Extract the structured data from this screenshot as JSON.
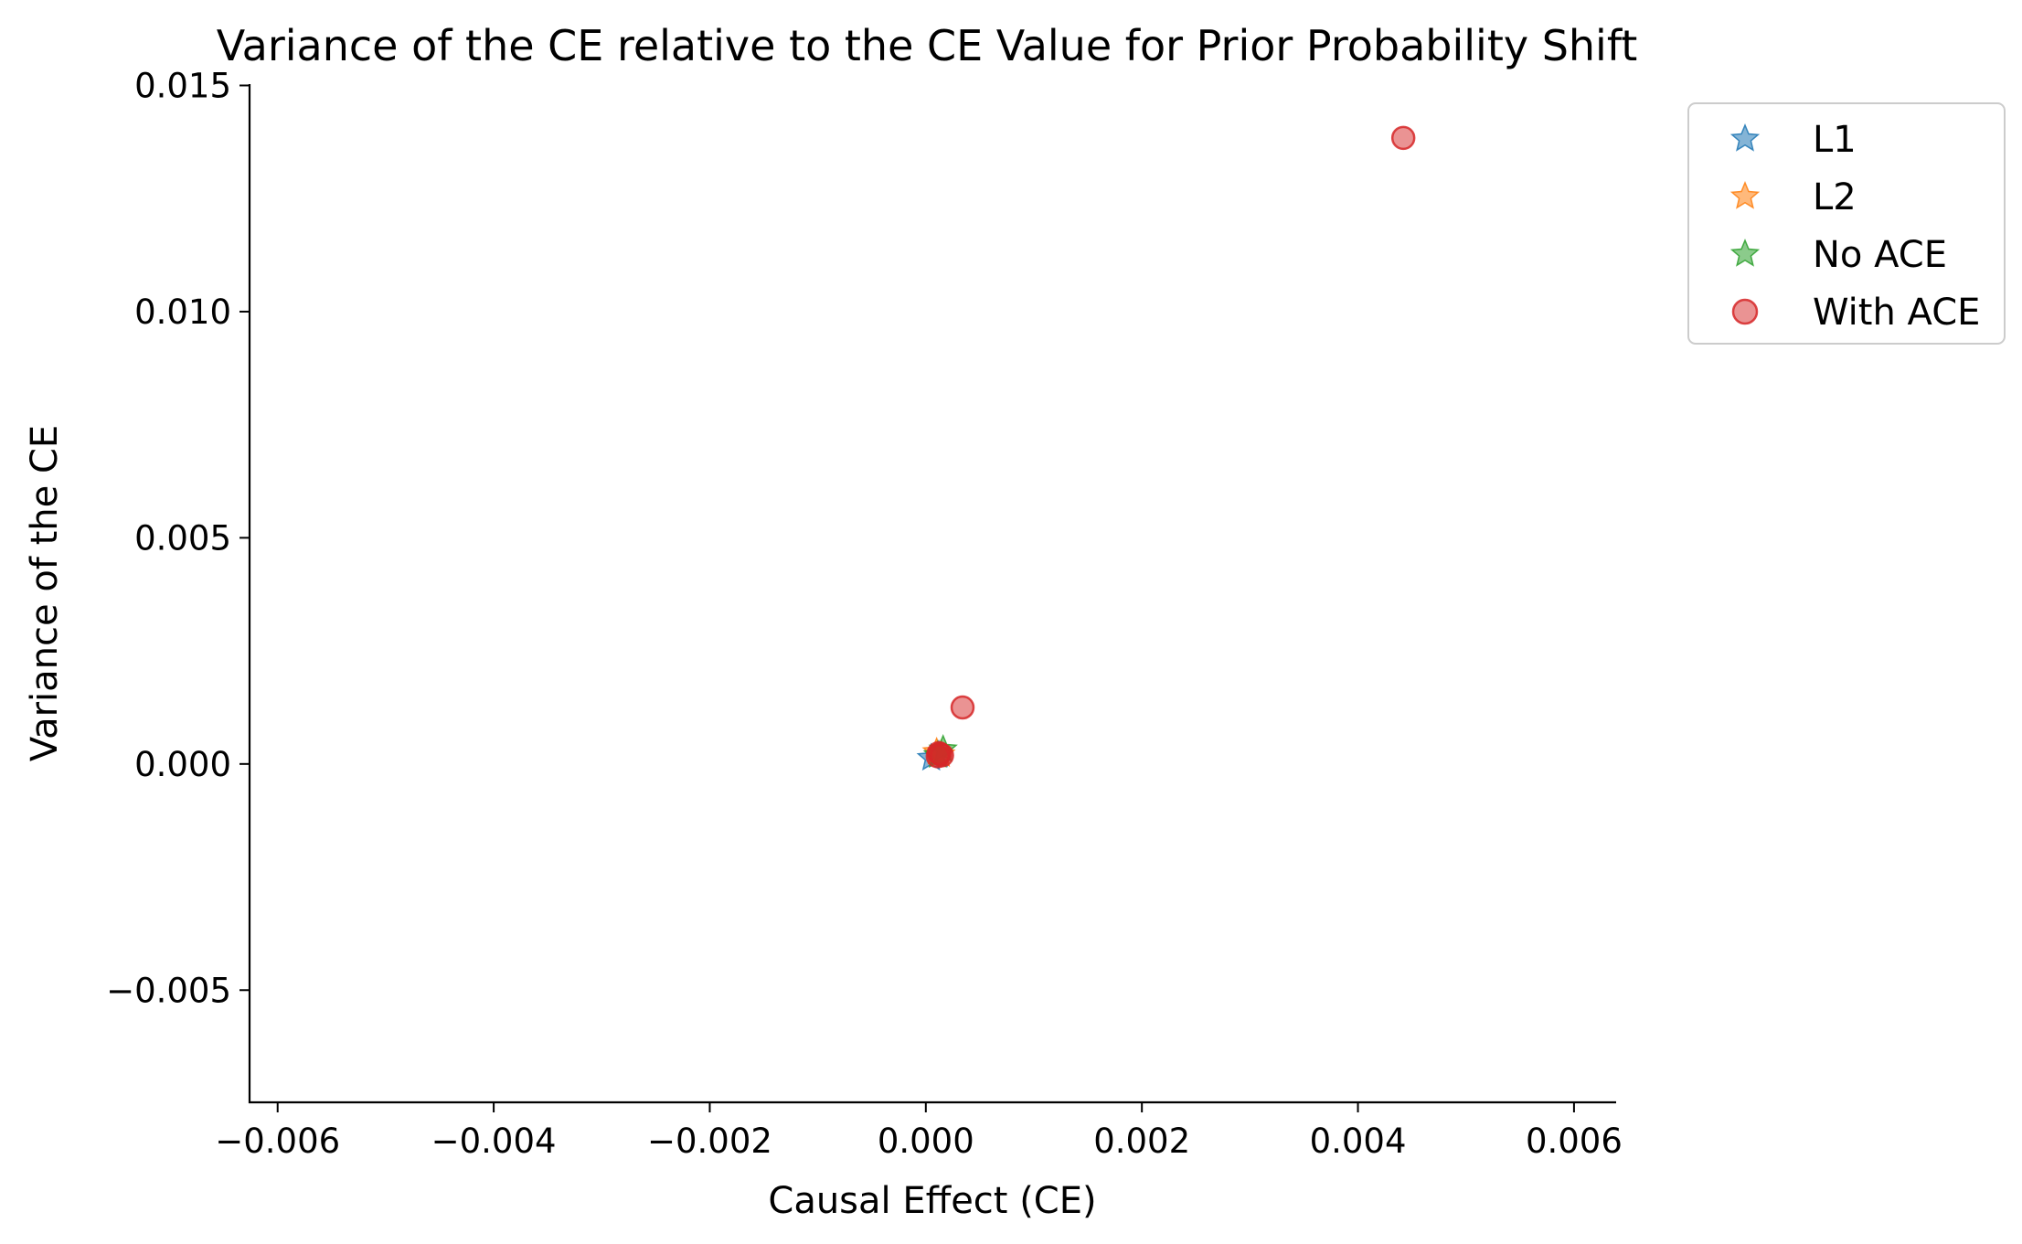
{
  "chart_data": {
    "type": "scatter",
    "title": "Variance of the CE relative to the CE Value for Prior Probability Shift",
    "xlabel": "Causal Effect (CE)",
    "ylabel": "Variance of the CE",
    "xlim": [
      -0.00626,
      0.00639
    ],
    "ylim": [
      -0.00748,
      0.01503
    ],
    "xticks": [
      -0.006,
      -0.004,
      -0.002,
      0.0,
      0.002,
      0.004,
      0.006
    ],
    "xtick_labels": [
      "−0.006",
      "−0.004",
      "−0.002",
      "0.000",
      "0.002",
      "0.004",
      "0.006"
    ],
    "yticks": [
      -0.005,
      0.0,
      0.005,
      0.01,
      0.015
    ],
    "ytick_labels": [
      "−0.005",
      "0.000",
      "0.005",
      "0.010",
      "0.015"
    ],
    "grid": false,
    "legend_position": "outside-top-right",
    "series": [
      {
        "name": "L1",
        "marker": "star",
        "color": "#1f77b4",
        "points": [
          {
            "x": 5e-05,
            "y": 0.00013
          },
          {
            "x": 0.00012,
            "y": 0.0002
          }
        ]
      },
      {
        "name": "L2",
        "marker": "star",
        "color": "#ff7f0e",
        "points": [
          {
            "x": 0.0001,
            "y": 0.00026
          },
          {
            "x": 0.00014,
            "y": 0.00021
          }
        ]
      },
      {
        "name": "No ACE",
        "marker": "star",
        "color": "#2ca02c",
        "points": [
          {
            "x": 0.00016,
            "y": 0.00032
          },
          {
            "x": 0.00011,
            "y": 0.00019
          }
        ]
      },
      {
        "name": "With ACE",
        "marker": "circle",
        "color": "#d62728",
        "points": [
          {
            "x": 0.00442,
            "y": 0.01384
          },
          {
            "x": 0.00034,
            "y": 0.00125
          },
          {
            "x": 0.00013,
            "y": 0.00022
          },
          {
            "x": 0.00011,
            "y": 0.00017
          },
          {
            "x": 0.00015,
            "y": 0.00019
          },
          {
            "x": 0.00012,
            "y": 0.00024
          }
        ]
      }
    ]
  }
}
